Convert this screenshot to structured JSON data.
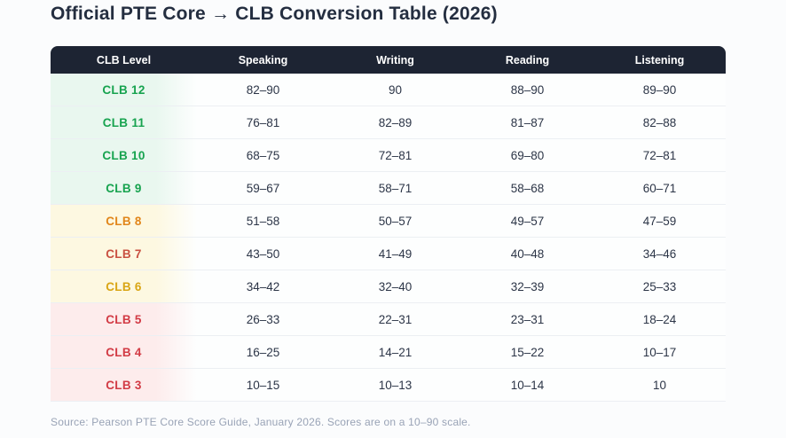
{
  "page": {
    "title": "Official PTE Core → CLB Conversion Table (2026)",
    "source_note": "Source: Pearson PTE Core Score Guide, January 2026. Scores are on a 10–90 scale."
  },
  "colors": {
    "header_background": "#1d2433",
    "header_text": "#ffffff",
    "title_text": "#242e40",
    "body_text": "#2c3547",
    "source_text": "#99a3b6",
    "tier_green_tint": "#e9f7ef",
    "tier_yellow_tint": "#fdf8e1",
    "tier_red_tint": "#fdecec",
    "green_level_text": "#17a34f",
    "red_level_text": "#d23b45"
  },
  "table": {
    "columns": [
      "CLB Level",
      "Speaking",
      "Writing",
      "Reading",
      "Listening"
    ],
    "rows": [
      {
        "level": "CLB 12",
        "speaking": "82–90",
        "writing": "90",
        "reading": "88–90",
        "listening": "89–90",
        "tier": "green",
        "level_color": "#17a34f"
      },
      {
        "level": "CLB 11",
        "speaking": "76–81",
        "writing": "82–89",
        "reading": "81–87",
        "listening": "82–88",
        "tier": "green",
        "level_color": "#17a34f"
      },
      {
        "level": "CLB 10",
        "speaking": "68–75",
        "writing": "72–81",
        "reading": "69–80",
        "listening": "72–81",
        "tier": "green",
        "level_color": "#17a34f"
      },
      {
        "level": "CLB 9",
        "speaking": "59–67",
        "writing": "58–71",
        "reading": "58–68",
        "listening": "60–71",
        "tier": "green",
        "level_color": "#17a34f"
      },
      {
        "level": "CLB 8",
        "speaking": "51–58",
        "writing": "50–57",
        "reading": "49–57",
        "listening": "47–59",
        "tier": "yellow",
        "level_color": "#e1861b"
      },
      {
        "level": "CLB 7",
        "speaking": "43–50",
        "writing": "41–49",
        "reading": "40–48",
        "listening": "34–46",
        "tier": "yellow",
        "level_color": "#c95041"
      },
      {
        "level": "CLB 6",
        "speaking": "34–42",
        "writing": "32–40",
        "reading": "32–39",
        "listening": "25–33",
        "tier": "yellow",
        "level_color": "#d9a514"
      },
      {
        "level": "CLB 5",
        "speaking": "26–33",
        "writing": "22–31",
        "reading": "23–31",
        "listening": "18–24",
        "tier": "red",
        "level_color": "#d23b45"
      },
      {
        "level": "CLB 4",
        "speaking": "16–25",
        "writing": "14–21",
        "reading": "15–22",
        "listening": "10–17",
        "tier": "red",
        "level_color": "#d23b45"
      },
      {
        "level": "CLB 3",
        "speaking": "10–15",
        "writing": "10–13",
        "reading": "10–14",
        "listening": "10",
        "tier": "red",
        "level_color": "#d23b45"
      }
    ]
  },
  "chart_data": {
    "type": "table",
    "title": "Official PTE Core → CLB Conversion Table (2026)",
    "columns": [
      "CLB Level",
      "Speaking",
      "Writing",
      "Reading",
      "Listening"
    ],
    "rows": [
      [
        "CLB 12",
        "82–90",
        "90",
        "88–90",
        "89–90"
      ],
      [
        "CLB 11",
        "76–81",
        "82–89",
        "81–87",
        "82–88"
      ],
      [
        "CLB 10",
        "68–75",
        "72–81",
        "69–80",
        "72–81"
      ],
      [
        "CLB 9",
        "59–67",
        "58–71",
        "58–68",
        "60–71"
      ],
      [
        "CLB 8",
        "51–58",
        "50–57",
        "49–57",
        "47–59"
      ],
      [
        "CLB 7",
        "43–50",
        "41–49",
        "40–48",
        "34–46"
      ],
      [
        "CLB 6",
        "34–42",
        "32–40",
        "32–39",
        "25–33"
      ],
      [
        "CLB 5",
        "26–33",
        "22–31",
        "23–31",
        "18–24"
      ],
      [
        "CLB 4",
        "16–25",
        "14–21",
        "15–22",
        "10–17"
      ],
      [
        "CLB 3",
        "10–15",
        "10–13",
        "10–14",
        "10"
      ]
    ],
    "annotations": [
      "Source: Pearson PTE Core Score Guide, January 2026. Scores are on a 10–90 scale."
    ],
    "score_scale": [
      10,
      90
    ]
  }
}
